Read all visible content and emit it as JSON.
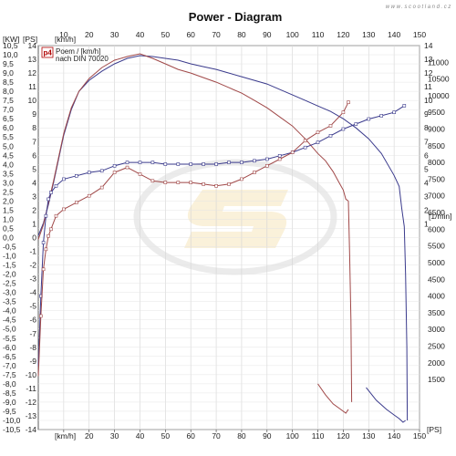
{
  "chart_data": {
    "type": "line",
    "title": "Power - Diagram",
    "watermark": "www.scootland.cz",
    "legend": {
      "badge": "p4",
      "line1": "Poem / [km/h]",
      "line2": "nach DIN 70020",
      "placement": "top-left"
    },
    "x_axis": {
      "unit_top": "[km/h]",
      "unit_bottom": "[km/h]",
      "range": [
        0,
        150
      ],
      "ticks": [
        10,
        20,
        30,
        40,
        50,
        60,
        70,
        80,
        90,
        100,
        110,
        120,
        130,
        140,
        150
      ]
    },
    "y_left_kw": {
      "unit": "[KW]",
      "range": [
        -10.5,
        10.5
      ],
      "ticks": [
        "10,5",
        "10,0",
        "9,5",
        "9,0",
        "8,5",
        "8,0",
        "7,5",
        "7,0",
        "6,5",
        "6,0",
        "5,5",
        "5,0",
        "4,5",
        "4,0",
        "3,5",
        "3,0",
        "2,5",
        "2,0",
        "1,5",
        "1,0",
        "0,5",
        "0,0",
        "-0,5",
        "-1,0",
        "-1,5",
        "-2,0",
        "-2,5",
        "-3,0",
        "-3,5",
        "-4,0",
        "-4,5",
        "-5,0",
        "-5,5",
        "-6,0",
        "-6,5",
        "-7,0",
        "-7,5",
        "-8,0",
        "-8,5",
        "-9,0",
        "-9,5",
        "-10,0",
        "-10,5"
      ]
    },
    "y_left_ps": {
      "unit": "[PS]",
      "range": [
        -14,
        14
      ],
      "ticks": [
        "14",
        "13",
        "12",
        "11",
        "10",
        "9",
        "8",
        "7",
        "6",
        "5",
        "4",
        "3",
        "2",
        "1",
        "0",
        "-1",
        "-2",
        "-3",
        "-4",
        "-5",
        "-6",
        "-7",
        "-8",
        "-9",
        "-10",
        "-11",
        "-12",
        "-13",
        "-14"
      ]
    },
    "y_right_ps": {
      "unit": "[PS]",
      "range": [
        -14,
        14
      ],
      "ticks": [
        "14",
        "13",
        "12",
        "11",
        "10",
        "9",
        "8",
        "7",
        "6",
        "5",
        "4",
        "3",
        "2",
        "1"
      ]
    },
    "y_right_rpm": {
      "unit": "[1/min]",
      "range": [
        0,
        11500
      ],
      "ticks": [
        "11000",
        "10500",
        "10000",
        "9500",
        "9000",
        "8500",
        "8000",
        "7500",
        "7000",
        "6500",
        "6000",
        "5500",
        "5000",
        "4500",
        "4000",
        "3500",
        "3000",
        "2500",
        "2000",
        "1500"
      ]
    },
    "series": [
      {
        "kind": "power",
        "axis": "kw",
        "color": "#3a3a8c",
        "x": [
          0,
          2,
          4,
          6,
          8,
          10,
          13,
          16,
          20,
          25,
          30,
          35,
          40,
          45,
          50,
          55,
          60,
          65,
          70,
          75,
          80,
          85,
          90,
          95,
          100,
          105,
          110,
          115,
          120,
          125,
          130,
          135,
          140,
          142,
          143,
          144
        ],
        "y": [
          0.1,
          0.8,
          1.8,
          3.0,
          4.3,
          5.6,
          7.0,
          8.0,
          8.6,
          9.1,
          9.5,
          9.8,
          9.95,
          9.9,
          9.8,
          9.7,
          9.5,
          9.35,
          9.2,
          9.0,
          8.8,
          8.6,
          8.4,
          8.1,
          7.8,
          7.5,
          7.2,
          6.9,
          6.5,
          6.0,
          5.4,
          4.6,
          3.4,
          2.8,
          1.6,
          0.6
        ]
      },
      {
        "kind": "power",
        "axis": "kw",
        "color": "#a04848",
        "x": [
          0,
          2,
          4,
          6,
          8,
          10,
          13,
          16,
          20,
          25,
          30,
          35,
          40,
          45,
          50,
          55,
          60,
          65,
          70,
          75,
          80,
          85,
          90,
          95,
          100,
          105,
          110,
          113,
          116,
          118,
          120,
          121,
          122
        ],
        "y": [
          -0.1,
          0.7,
          1.9,
          3.1,
          4.4,
          5.7,
          7.1,
          8.0,
          8.7,
          9.3,
          9.7,
          9.9,
          10.05,
          9.8,
          9.5,
          9.2,
          9.0,
          8.75,
          8.5,
          8.2,
          7.9,
          7.5,
          7.1,
          6.6,
          6.1,
          5.4,
          4.6,
          4.2,
          3.6,
          3.1,
          2.6,
          2.1,
          2.0
        ]
      },
      {
        "kind": "rpm",
        "axis": "rpm",
        "color": "#3a3a8c",
        "x": [
          0,
          1,
          2,
          3,
          4,
          5,
          7,
          10,
          15,
          20,
          25,
          30,
          35,
          40,
          45,
          50,
          55,
          60,
          65,
          70,
          75,
          80,
          85,
          90,
          95,
          100,
          105,
          110,
          115,
          120,
          125,
          130,
          135,
          140,
          144
        ],
        "y": [
          1900,
          4000,
          5600,
          6400,
          6900,
          7100,
          7300,
          7500,
          7600,
          7700,
          7750,
          7900,
          8000,
          8000,
          8000,
          7950,
          7950,
          7950,
          7950,
          7950,
          8000,
          8000,
          8050,
          8100,
          8200,
          8300,
          8450,
          8600,
          8800,
          9000,
          9150,
          9300,
          9400,
          9500,
          9700
        ]
      },
      {
        "kind": "rpm",
        "axis": "rpm",
        "color": "#a04848",
        "x": [
          0,
          1,
          2,
          3,
          4,
          5,
          7,
          10,
          15,
          20,
          25,
          30,
          35,
          40,
          45,
          50,
          55,
          60,
          65,
          70,
          75,
          80,
          85,
          90,
          95,
          100,
          105,
          110,
          115,
          120,
          122
        ],
        "y": [
          1600,
          3400,
          4800,
          5400,
          5800,
          6000,
          6400,
          6600,
          6800,
          7000,
          7250,
          7700,
          7850,
          7650,
          7450,
          7400,
          7400,
          7400,
          7350,
          7300,
          7350,
          7500,
          7700,
          7900,
          8100,
          8300,
          8650,
          8900,
          9100,
          9500,
          9800
        ]
      },
      {
        "kind": "drop",
        "axis": "kw",
        "color": "#a04848",
        "x": [
          122,
          122.5,
          123,
          123.3,
          110,
          113,
          116,
          119,
          121,
          122
        ],
        "y": [
          2.0,
          -1.0,
          -4.5,
          -9.0,
          -8.0,
          -8.6,
          -9.1,
          -9.4,
          -9.6,
          -9.4
        ]
      },
      {
        "kind": "drop",
        "axis": "kw",
        "color": "#3a3a8c",
        "x": [
          144,
          144.5,
          145,
          145.2,
          129,
          133,
          137,
          140,
          142,
          143.5,
          144.5
        ],
        "y": [
          0.6,
          -2.0,
          -6.0,
          -10.0,
          -8.2,
          -8.9,
          -9.4,
          -9.7,
          -9.9,
          -10.1,
          -10.0
        ]
      }
    ]
  }
}
